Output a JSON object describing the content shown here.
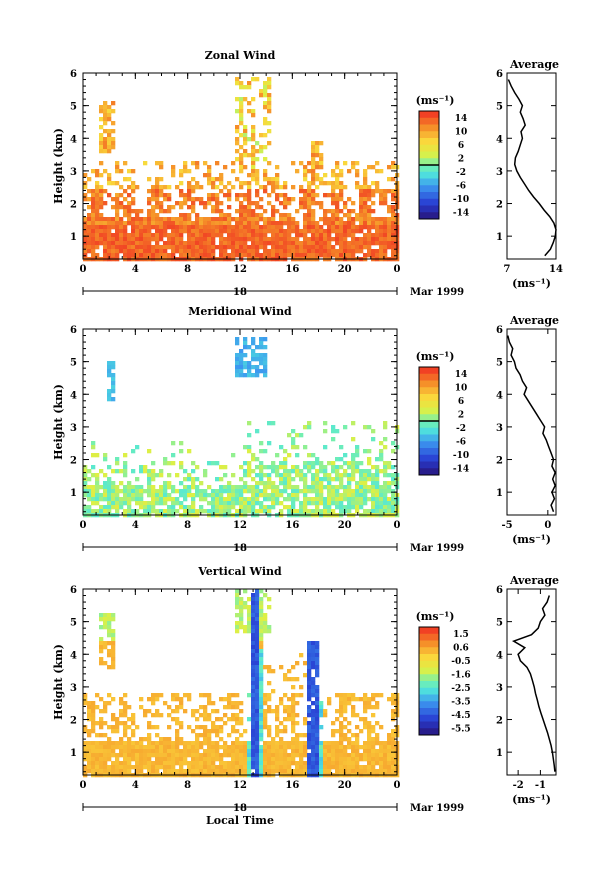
{
  "chart_data": [
    {
      "type": "heatmap",
      "title": "Zonal Wind",
      "ylabel": "Height (km)",
      "x_ticks": [
        "0",
        "4",
        "8",
        "12",
        "16",
        "20",
        "0"
      ],
      "xlim": [
        0,
        24
      ],
      "y_ticks": [
        "1",
        "2",
        "3",
        "4",
        "5",
        "6"
      ],
      "ylim": [
        0.3,
        6
      ],
      "date_label": "18",
      "month_label": "Mar 1999",
      "colorbar": {
        "unit": "(ms⁻¹)",
        "ticks": [
          "14",
          "10",
          "6",
          "2",
          "-2",
          "-6",
          "-10",
          "-14"
        ],
        "range": [
          -16,
          16
        ]
      },
      "average": {
        "title": "Average",
        "x_ticks": [
          "7",
          "14"
        ],
        "xlim": [
          7,
          14
        ],
        "xlabel": "(ms⁻¹)",
        "profile": [
          [
            0.4,
            12.4
          ],
          [
            0.6,
            13.2
          ],
          [
            0.8,
            13.6
          ],
          [
            1.0,
            13.9
          ],
          [
            1.2,
            14.0
          ],
          [
            1.4,
            13.7
          ],
          [
            1.6,
            13.1
          ],
          [
            1.8,
            12.3
          ],
          [
            2.0,
            11.6
          ],
          [
            2.2,
            10.8
          ],
          [
            2.4,
            10.1
          ],
          [
            2.6,
            9.5
          ],
          [
            2.8,
            8.9
          ],
          [
            3.0,
            8.4
          ],
          [
            3.2,
            8.1
          ],
          [
            3.4,
            8.2
          ],
          [
            3.6,
            8.6
          ],
          [
            3.8,
            8.9
          ],
          [
            4.0,
            9.2
          ],
          [
            4.2,
            9.0
          ],
          [
            4.4,
            9.6
          ],
          [
            4.6,
            9.3
          ],
          [
            4.8,
            8.9
          ],
          [
            5.0,
            9.2
          ],
          [
            5.2,
            8.7
          ],
          [
            5.4,
            8.1
          ],
          [
            5.6,
            7.6
          ],
          [
            5.8,
            7.2
          ]
        ]
      }
    },
    {
      "type": "heatmap",
      "title": "Meridional Wind",
      "ylabel": "Height (km)",
      "x_ticks": [
        "0",
        "4",
        "8",
        "12",
        "16",
        "20",
        "0"
      ],
      "xlim": [
        0,
        24
      ],
      "y_ticks": [
        "1",
        "2",
        "3",
        "4",
        "5",
        "6"
      ],
      "ylim": [
        0.3,
        6
      ],
      "date_label": "18",
      "month_label": "Mar 1999",
      "colorbar": {
        "unit": "(ms⁻¹)",
        "ticks": [
          "14",
          "10",
          "6",
          "2",
          "-2",
          "-6",
          "-10",
          "-14"
        ],
        "range": [
          -16,
          16
        ]
      },
      "average": {
        "title": "Average",
        "x_ticks": [
          "-5",
          "0"
        ],
        "xlim": [
          -5,
          1
        ],
        "xlabel": "(ms⁻¹)",
        "profile": [
          [
            0.4,
            0.7
          ],
          [
            0.6,
            0.4
          ],
          [
            0.8,
            0.8
          ],
          [
            1.0,
            0.5
          ],
          [
            1.2,
            0.9
          ],
          [
            1.4,
            0.6
          ],
          [
            1.6,
            0.9
          ],
          [
            1.8,
            0.5
          ],
          [
            2.0,
            0.7
          ],
          [
            2.2,
            0.4
          ],
          [
            2.4,
            0.1
          ],
          [
            2.6,
            -0.2
          ],
          [
            2.8,
            -0.6
          ],
          [
            3.0,
            -0.4
          ],
          [
            3.2,
            -0.9
          ],
          [
            3.4,
            -1.4
          ],
          [
            3.6,
            -1.9
          ],
          [
            3.8,
            -2.4
          ],
          [
            4.0,
            -2.9
          ],
          [
            4.2,
            -2.6
          ],
          [
            4.4,
            -3.1
          ],
          [
            4.6,
            -3.4
          ],
          [
            4.8,
            -3.9
          ],
          [
            5.0,
            -4.1
          ],
          [
            5.2,
            -4.5
          ],
          [
            5.4,
            -4.3
          ],
          [
            5.6,
            -4.7
          ],
          [
            5.8,
            -4.9
          ]
        ]
      }
    },
    {
      "type": "heatmap",
      "title": "Vertical Wind",
      "ylabel": "Height (km)",
      "xlabel": "Local Time",
      "x_ticks": [
        "0",
        "4",
        "8",
        "12",
        "16",
        "20",
        "0"
      ],
      "xlim": [
        0,
        24
      ],
      "y_ticks": [
        "1",
        "2",
        "3",
        "4",
        "5",
        "6"
      ],
      "ylim": [
        0.3,
        6
      ],
      "date_label": "18",
      "month_label": "Mar 1999",
      "colorbar": {
        "unit": "(ms⁻¹)",
        "ticks": [
          "1.5",
          "0.6",
          "-0.5",
          "-1.6",
          "-2.5",
          "-3.5",
          "-4.5",
          "-5.5"
        ],
        "range": [
          -6,
          2
        ]
      },
      "average": {
        "title": "Average",
        "x_ticks": [
          "-2",
          "-1"
        ],
        "xlim": [
          -2.5,
          -0.3
        ],
        "xlabel": "(ms⁻¹)",
        "profile": [
          [
            0.4,
            -0.35
          ],
          [
            0.6,
            -0.38
          ],
          [
            0.8,
            -0.42
          ],
          [
            1.0,
            -0.46
          ],
          [
            1.2,
            -0.52
          ],
          [
            1.4,
            -0.6
          ],
          [
            1.6,
            -0.68
          ],
          [
            1.8,
            -0.78
          ],
          [
            2.0,
            -0.88
          ],
          [
            2.2,
            -0.98
          ],
          [
            2.4,
            -1.07
          ],
          [
            2.6,
            -1.14
          ],
          [
            2.8,
            -1.22
          ],
          [
            3.0,
            -1.28
          ],
          [
            3.2,
            -1.36
          ],
          [
            3.4,
            -1.45
          ],
          [
            3.6,
            -1.6
          ],
          [
            3.8,
            -1.9
          ],
          [
            4.0,
            -2.0
          ],
          [
            4.2,
            -1.7
          ],
          [
            4.4,
            -2.2
          ],
          [
            4.6,
            -1.4
          ],
          [
            4.8,
            -1.1
          ],
          [
            5.0,
            -1.0
          ],
          [
            5.2,
            -0.8
          ],
          [
            5.4,
            -0.9
          ],
          [
            5.6,
            -0.7
          ],
          [
            5.8,
            -0.6
          ]
        ]
      }
    }
  ]
}
